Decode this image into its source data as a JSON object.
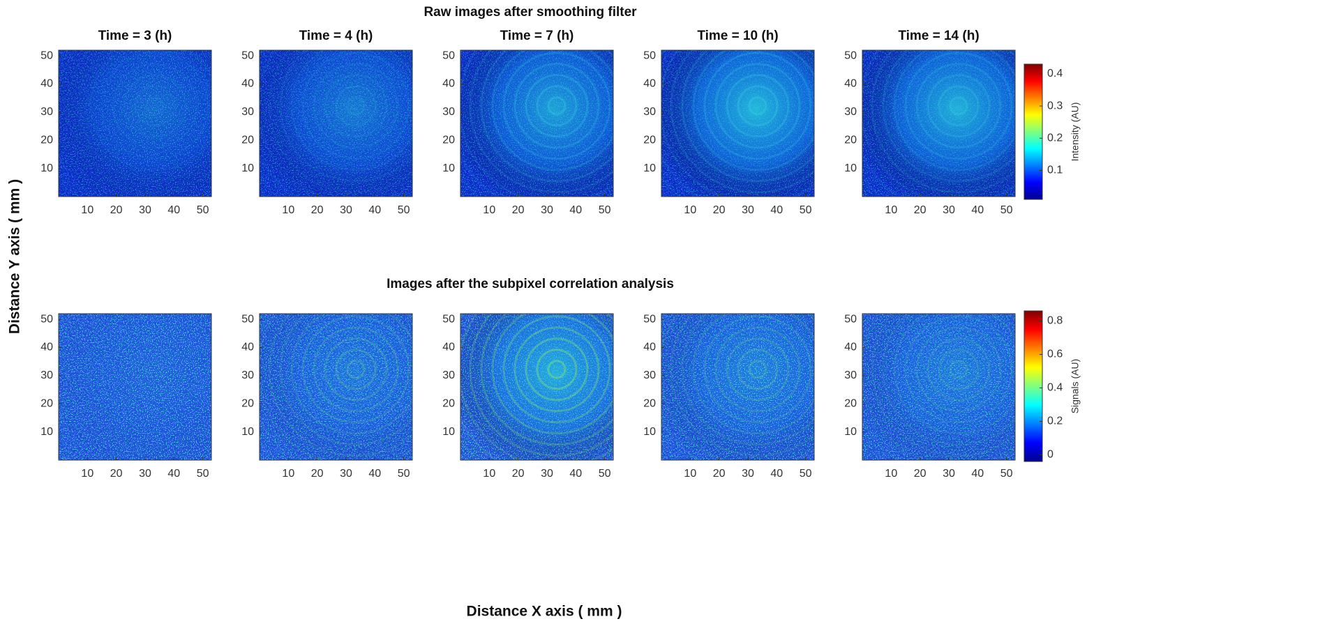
{
  "figure": {
    "row_titles": [
      "Raw images after smoothing filter",
      "Images after the subpixel correlation analysis"
    ],
    "xlabel": "Distance X axis ( mm )",
    "ylabel": "Distance Y axis ( mm )",
    "colorbars": [
      {
        "label": "Intensity (AU)",
        "clim": [
          0.01,
          0.43
        ],
        "ticks": [
          0.1,
          0.2,
          0.3,
          0.4
        ]
      },
      {
        "label": "Signals (AU)",
        "clim": [
          -0.04,
          0.86
        ],
        "ticks": [
          0,
          0.2,
          0.4,
          0.6,
          0.8
        ]
      }
    ]
  },
  "chart_data": [
    {
      "type": "heatmap",
      "title": "Time = 3 (h)",
      "xlim": [
        0,
        53
      ],
      "xticks": [
        10,
        20,
        30,
        40,
        50
      ],
      "ylim": [
        0,
        52
      ],
      "yticks": [
        10,
        20,
        30,
        40,
        50
      ]
    },
    {
      "type": "heatmap",
      "title": "Time = 4 (h)",
      "xlim": [
        0,
        53
      ],
      "xticks": [
        10,
        20,
        30,
        40,
        50
      ],
      "ylim": [
        0,
        52
      ],
      "yticks": [
        10,
        20,
        30,
        40,
        50
      ]
    },
    {
      "type": "heatmap",
      "title": "Time = 7 (h)",
      "xlim": [
        0,
        53
      ],
      "xticks": [
        10,
        20,
        30,
        40,
        50
      ],
      "ylim": [
        0,
        52
      ],
      "yticks": [
        10,
        20,
        30,
        40,
        50
      ]
    },
    {
      "type": "heatmap",
      "title": "Time = 10 (h)",
      "xlim": [
        0,
        53
      ],
      "xticks": [
        10,
        20,
        30,
        40,
        50
      ],
      "ylim": [
        0,
        52
      ],
      "yticks": [
        10,
        20,
        30,
        40,
        50
      ]
    },
    {
      "type": "heatmap",
      "title": "Time = 14 (h)",
      "xlim": [
        0,
        53
      ],
      "xticks": [
        10,
        20,
        30,
        40,
        50
      ],
      "ylim": [
        0,
        52
      ],
      "yticks": [
        10,
        20,
        30,
        40,
        50
      ]
    },
    {
      "type": "heatmap",
      "xlim": [
        0,
        53
      ],
      "xticks": [
        10,
        20,
        30,
        40,
        50
      ],
      "ylim": [
        0,
        52
      ],
      "yticks": [
        10,
        20,
        30,
        40,
        50
      ]
    },
    {
      "type": "heatmap",
      "xlim": [
        0,
        53
      ],
      "xticks": [
        10,
        20,
        30,
        40,
        50
      ],
      "ylim": [
        0,
        52
      ],
      "yticks": [
        10,
        20,
        30,
        40,
        50
      ]
    },
    {
      "type": "heatmap",
      "xlim": [
        0,
        53
      ],
      "xticks": [
        10,
        20,
        30,
        40,
        50
      ],
      "ylim": [
        0,
        52
      ],
      "yticks": [
        10,
        20,
        30,
        40,
        50
      ]
    },
    {
      "type": "heatmap",
      "xlim": [
        0,
        53
      ],
      "xticks": [
        10,
        20,
        30,
        40,
        50
      ],
      "ylim": [
        0,
        52
      ],
      "yticks": [
        10,
        20,
        30,
        40,
        50
      ]
    },
    {
      "type": "heatmap",
      "xlim": [
        0,
        53
      ],
      "xticks": [
        10,
        20,
        30,
        40,
        50
      ],
      "ylim": [
        0,
        52
      ],
      "yticks": [
        10,
        20,
        30,
        40,
        50
      ]
    }
  ]
}
